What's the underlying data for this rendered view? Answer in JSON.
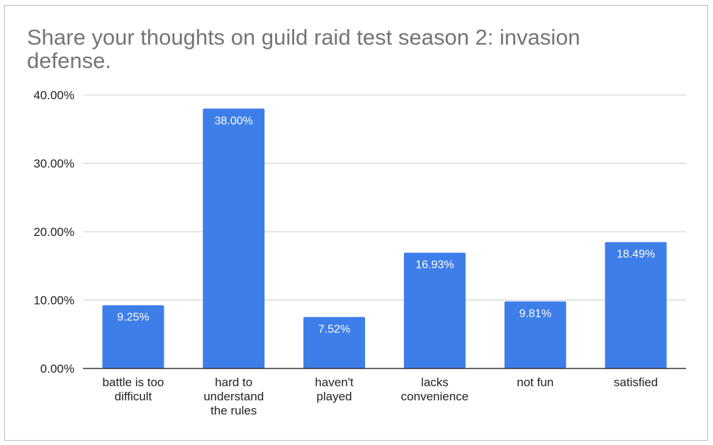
{
  "chart_data": {
    "type": "bar",
    "title": "Share your thoughts on guild raid test season 2: invasion defense.",
    "categories": [
      [
        "battle is too",
        "difficult"
      ],
      [
        "hard to",
        "understand",
        "the rules"
      ],
      [
        "haven't",
        "played"
      ],
      [
        "lacks",
        "convenience"
      ],
      [
        "not fun"
      ],
      [
        "satisfied"
      ]
    ],
    "values": [
      9.25,
      38.0,
      7.52,
      16.93,
      9.81,
      18.49
    ],
    "data_labels": [
      "9.25%",
      "38.00%",
      "7.52%",
      "16.93%",
      "9.81%",
      "18.49%"
    ],
    "ylim": [
      0,
      40
    ],
    "yticks": [
      0,
      10,
      20,
      30,
      40
    ],
    "ytick_labels": [
      "0.00%",
      "10.00%",
      "20.00%",
      "30.00%",
      "40.00%"
    ],
    "xlabel": "",
    "ylabel": "",
    "grid": true,
    "legend": "none",
    "colors": {
      "bar": "#3d7ee9",
      "grid": "#cccccc",
      "axis": "#333333",
      "title": "#757575",
      "tick_text": "#222222",
      "data_label": "#ffffff"
    }
  }
}
